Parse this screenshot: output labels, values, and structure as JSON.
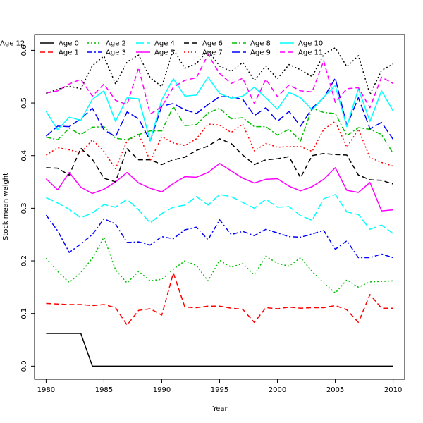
{
  "chart_data": {
    "type": "line",
    "title": "",
    "xlabel": "Year",
    "ylabel": "Stock mean weight",
    "xlim": [
      1979,
      2011
    ],
    "ylim": [
      -0.025,
      0.63
    ],
    "x_ticks": [
      1980,
      1985,
      1990,
      1995,
      2000,
      2005,
      2010
    ],
    "y_ticks": [
      0.0,
      0.1,
      0.2,
      0.3,
      0.4,
      0.5,
      0.6
    ],
    "y_tick_labels": [
      "0.0",
      "0.1",
      "0.2",
      "0.3",
      "0.4",
      "0.5",
      "0.6"
    ],
    "grid": false,
    "legend": {
      "placement": "top-left",
      "columns": 6
    },
    "x": [
      1980,
      1981,
      1982,
      1983,
      1984,
      1985,
      1986,
      1987,
      1988,
      1989,
      1990,
      1991,
      1992,
      1993,
      1994,
      1995,
      1996,
      1997,
      1998,
      1999,
      2000,
      2001,
      2002,
      2003,
      2004,
      2005,
      2006,
      2007,
      2008,
      2009,
      2010
    ],
    "series": [
      {
        "name": "Age 0",
        "color": "#000000",
        "dash": "solid",
        "values": [
          0.062,
          0.062,
          0.062,
          0.062,
          0.0,
          0.0,
          0.0,
          0.0,
          0.0,
          0.0,
          0.0,
          0.0,
          0.0,
          0.0,
          0.0,
          0.0,
          0.0,
          0.0,
          0.0,
          0.0,
          0.0,
          0.0,
          0.0,
          0.0,
          0.0,
          0.0,
          0.0,
          0.0,
          0.0,
          0.0,
          0.0
        ]
      },
      {
        "name": "Age 1",
        "color": "#ff0000",
        "dash": "dashed",
        "values": [
          0.119,
          0.118,
          0.117,
          0.117,
          0.115,
          0.117,
          0.111,
          0.078,
          0.106,
          0.109,
          0.097,
          0.177,
          0.112,
          0.111,
          0.114,
          0.114,
          0.11,
          0.108,
          0.083,
          0.111,
          0.109,
          0.112,
          0.11,
          0.111,
          0.111,
          0.115,
          0.107,
          0.083,
          0.136,
          0.11,
          0.11
        ]
      },
      {
        "name": "Age 2",
        "color": "#00c000",
        "dash": "dotted",
        "values": [
          0.205,
          0.18,
          0.159,
          0.178,
          0.205,
          0.245,
          0.183,
          0.158,
          0.18,
          0.162,
          0.165,
          0.184,
          0.2,
          0.191,
          0.162,
          0.201,
          0.188,
          0.195,
          0.173,
          0.209,
          0.195,
          0.19,
          0.206,
          0.18,
          0.158,
          0.139,
          0.164,
          0.15,
          0.16,
          0.161,
          0.162
        ]
      },
      {
        "name": "Age 3",
        "color": "#0000ff",
        "dash": "dashdot",
        "values": [
          0.287,
          0.257,
          0.216,
          0.232,
          0.25,
          0.28,
          0.27,
          0.235,
          0.236,
          0.23,
          0.246,
          0.242,
          0.259,
          0.264,
          0.24,
          0.278,
          0.25,
          0.256,
          0.248,
          0.26,
          0.253,
          0.246,
          0.245,
          0.251,
          0.258,
          0.222,
          0.238,
          0.206,
          0.206,
          0.213,
          0.206
        ]
      },
      {
        "name": "Age 4",
        "color": "#00ffff",
        "dash": "longdash",
        "values": [
          0.32,
          0.31,
          0.298,
          0.282,
          0.291,
          0.307,
          0.302,
          0.317,
          0.297,
          0.272,
          0.29,
          0.302,
          0.306,
          0.322,
          0.306,
          0.326,
          0.322,
          0.311,
          0.3,
          0.317,
          0.302,
          0.303,
          0.286,
          0.277,
          0.318,
          0.326,
          0.293,
          0.288,
          0.26,
          0.268,
          0.252
        ]
      },
      {
        "name": "Age 5",
        "color": "#ff00ff",
        "dash": "solid",
        "values": [
          0.356,
          0.335,
          0.368,
          0.34,
          0.328,
          0.336,
          0.35,
          0.368,
          0.348,
          0.338,
          0.331,
          0.347,
          0.36,
          0.359,
          0.368,
          0.385,
          0.371,
          0.357,
          0.348,
          0.355,
          0.356,
          0.342,
          0.333,
          0.341,
          0.355,
          0.377,
          0.334,
          0.33,
          0.349,
          0.295,
          0.297
        ]
      },
      {
        "name": "Age 6",
        "color": "#000000",
        "dash": "dashed",
        "values": [
          0.377,
          0.376,
          0.363,
          0.414,
          0.393,
          0.357,
          0.35,
          0.413,
          0.392,
          0.392,
          0.383,
          0.392,
          0.397,
          0.41,
          0.418,
          0.432,
          0.423,
          0.401,
          0.383,
          0.392,
          0.394,
          0.398,
          0.358,
          0.4,
          0.404,
          0.402,
          0.401,
          0.363,
          0.354,
          0.353,
          0.346
        ]
      },
      {
        "name": "Age 7",
        "color": "#ff0000",
        "dash": "dotted",
        "values": [
          0.401,
          0.415,
          0.411,
          0.405,
          0.43,
          0.408,
          0.375,
          0.428,
          0.441,
          0.39,
          0.436,
          0.424,
          0.419,
          0.432,
          0.46,
          0.458,
          0.444,
          0.46,
          0.409,
          0.423,
          0.416,
          0.417,
          0.417,
          0.408,
          0.45,
          0.465,
          0.416,
          0.45,
          0.396,
          0.387,
          0.38
        ]
      },
      {
        "name": "Age 8",
        "color": "#00c000",
        "dash": "dashdot",
        "values": [
          0.435,
          0.43,
          0.452,
          0.44,
          0.454,
          0.455,
          0.433,
          0.43,
          0.44,
          0.447,
          0.447,
          0.493,
          0.457,
          0.459,
          0.481,
          0.49,
          0.47,
          0.472,
          0.455,
          0.455,
          0.439,
          0.45,
          0.428,
          0.49,
          0.482,
          0.48,
          0.438,
          0.453,
          0.45,
          0.44,
          0.404
        ]
      },
      {
        "name": "Age 9",
        "color": "#0000ff",
        "dash": "longdash",
        "values": [
          0.437,
          0.456,
          0.455,
          0.47,
          0.49,
          0.449,
          0.436,
          0.483,
          0.47,
          0.428,
          0.494,
          0.499,
          0.487,
          0.48,
          0.497,
          0.512,
          0.512,
          0.507,
          0.476,
          0.491,
          0.465,
          0.484,
          0.456,
          0.49,
          0.51,
          0.547,
          0.457,
          0.51,
          0.451,
          0.463,
          0.431
        ]
      },
      {
        "name": "Age 10",
        "color": "#00ffff",
        "dash": "solid",
        "values": [
          0.484,
          0.449,
          0.473,
          0.467,
          0.507,
          0.523,
          0.465,
          0.51,
          0.508,
          0.428,
          0.506,
          0.546,
          0.513,
          0.515,
          0.549,
          0.518,
          0.509,
          0.513,
          0.53,
          0.51,
          0.488,
          0.52,
          0.51,
          0.487,
          0.511,
          0.533,
          0.455,
          0.527,
          0.465,
          0.523,
          0.485
        ]
      },
      {
        "name": "Age 11",
        "color": "#ff00ff",
        "dash": "dashed",
        "values": [
          0.519,
          0.523,
          0.536,
          0.545,
          0.513,
          0.536,
          0.505,
          0.497,
          0.567,
          0.479,
          0.493,
          0.53,
          0.543,
          0.548,
          0.592,
          0.556,
          0.537,
          0.547,
          0.499,
          0.545,
          0.512,
          0.534,
          0.523,
          0.521,
          0.58,
          0.501,
          0.527,
          0.529,
          0.491,
          0.549,
          0.537
        ]
      },
      {
        "name": "Age 12",
        "color": "#000000",
        "dash": "dotted",
        "values": [
          0.518,
          0.526,
          0.532,
          0.527,
          0.571,
          0.589,
          0.536,
          0.578,
          0.591,
          0.548,
          0.531,
          0.602,
          0.566,
          0.575,
          0.6,
          0.57,
          0.56,
          0.577,
          0.543,
          0.57,
          0.546,
          0.573,
          0.563,
          0.55,
          0.592,
          0.605,
          0.569,
          0.59,
          0.516,
          0.562,
          0.574
        ]
      }
    ]
  }
}
